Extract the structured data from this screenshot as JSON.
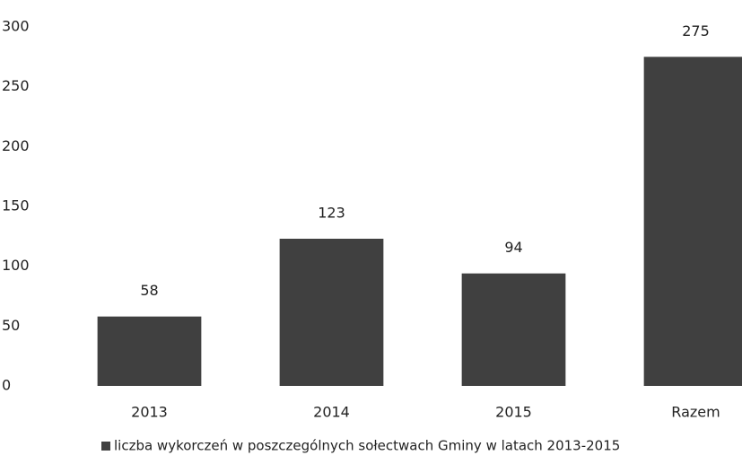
{
  "chart_data": {
    "type": "bar",
    "categories": [
      "2013",
      "2014",
      "2015",
      "Razem"
    ],
    "series": [
      {
        "name": "liczba wykorczeń w poszczególnych sołectwach Gminy w latach 2013-2015",
        "color": "#404040",
        "values": [
          58,
          123,
          94,
          275
        ]
      }
    ],
    "ylim": [
      0,
      300
    ],
    "yticks": [
      0,
      50,
      100,
      150,
      200,
      250,
      300
    ],
    "grid": false,
    "legend": "bottom"
  }
}
